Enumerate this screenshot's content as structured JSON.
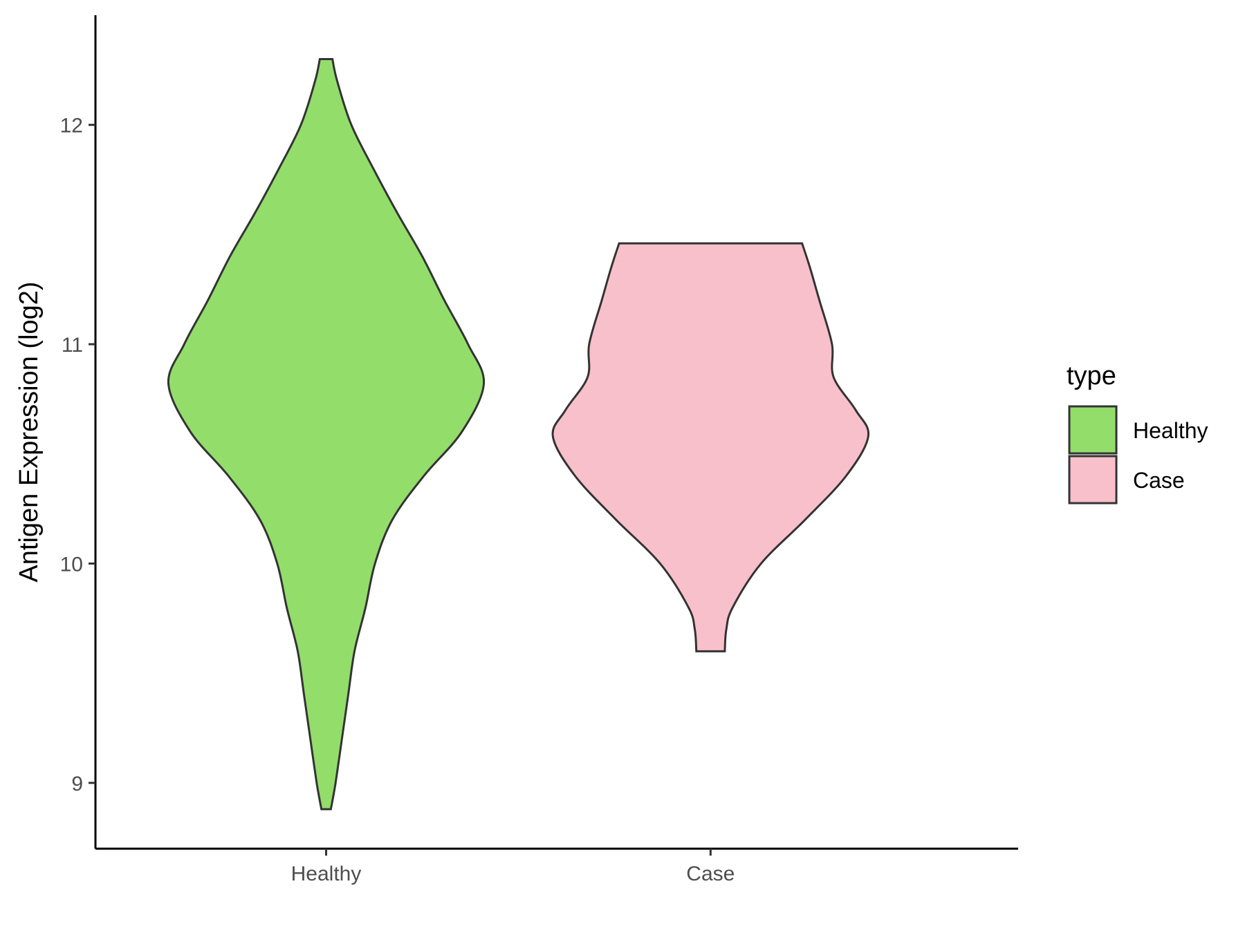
{
  "chart_data": {
    "type": "violin",
    "title": "",
    "xlabel": "",
    "ylabel": "Antigen Expression (log2)",
    "categories": [
      "Healthy",
      "Case"
    ],
    "ylim": [
      8.7,
      12.5
    ],
    "y_ticks": [
      9,
      10,
      11,
      12
    ],
    "grid": false,
    "legend": {
      "title": "type",
      "position": "right",
      "entries": [
        "Healthy",
        "Case"
      ]
    },
    "series": [
      {
        "name": "Healthy",
        "color": "#93dd6b",
        "y_range": [
          8.88,
          12.3
        ],
        "density_profile": [
          [
            8.88,
            0.03
          ],
          [
            9.0,
            0.06
          ],
          [
            9.2,
            0.1
          ],
          [
            9.4,
            0.14
          ],
          [
            9.6,
            0.18
          ],
          [
            9.8,
            0.25
          ],
          [
            10.0,
            0.31
          ],
          [
            10.2,
            0.42
          ],
          [
            10.4,
            0.62
          ],
          [
            10.6,
            0.86
          ],
          [
            10.82,
            1.0
          ],
          [
            11.0,
            0.9
          ],
          [
            11.2,
            0.75
          ],
          [
            11.4,
            0.61
          ],
          [
            11.6,
            0.45
          ],
          [
            11.8,
            0.3
          ],
          [
            12.0,
            0.16
          ],
          [
            12.2,
            0.07
          ],
          [
            12.3,
            0.04
          ]
        ]
      },
      {
        "name": "Case",
        "color": "#f8c0cb",
        "y_range": [
          9.6,
          11.46
        ],
        "density_profile": [
          [
            9.6,
            0.09
          ],
          [
            9.7,
            0.1
          ],
          [
            9.8,
            0.14
          ],
          [
            10.0,
            0.32
          ],
          [
            10.2,
            0.6
          ],
          [
            10.4,
            0.86
          ],
          [
            10.58,
            1.0
          ],
          [
            10.7,
            0.92
          ],
          [
            10.85,
            0.78
          ],
          [
            11.0,
            0.77
          ],
          [
            11.2,
            0.69
          ],
          [
            11.35,
            0.63
          ],
          [
            11.46,
            0.58
          ]
        ]
      }
    ]
  }
}
